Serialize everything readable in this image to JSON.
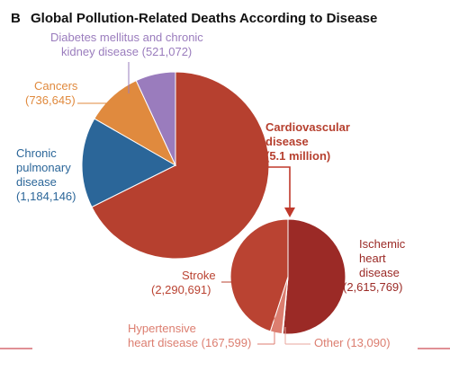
{
  "panel_label": "B",
  "title": "Global Pollution-Related Deaths According to Disease",
  "colors": {
    "diabetes": "#9a7cbd",
    "cancers": "#e08a3e",
    "chronic_pulmonary": "#2b6699",
    "cardiovascular": "#b6402f",
    "ischemic": "#9b2a26",
    "stroke": "#ba4332",
    "hypertensive": "#dc7e70",
    "other": "#e8a79d",
    "arrow": "#c0392b"
  },
  "chart_data": [
    {
      "type": "pie",
      "name": "all diseases",
      "categories": [
        "Cardiovascular disease",
        "Chronic pulmonary disease",
        "Cancers",
        "Diabetes mellitus and chronic kidney disease"
      ],
      "values": [
        5100000,
        1184146,
        736645,
        521072
      ],
      "labels": [
        [
          "Cardiovascular",
          "disease",
          "(5.1 million)"
        ],
        [
          "Chronic",
          "pulmonary",
          "disease",
          "(1,184,146)"
        ],
        [
          "Cancers",
          "(736,645)"
        ],
        [
          "Diabetes mellitus and chronic",
          "kidney disease (521,072)"
        ]
      ]
    },
    {
      "type": "pie",
      "name": "cardiovascular breakdown",
      "categories": [
        "Ischemic heart disease",
        "Other",
        "Hypertensive heart disease",
        "Stroke"
      ],
      "values": [
        2615769,
        13090,
        167599,
        2290691
      ],
      "labels": [
        [
          "Ischemic",
          "heart",
          "disease",
          "(2,615,769)"
        ],
        [
          "Other (13,090)"
        ],
        [
          "Hypertensive",
          "heart disease (167,599)"
        ],
        [
          "Stroke",
          "(2,290,691)"
        ]
      ]
    }
  ]
}
